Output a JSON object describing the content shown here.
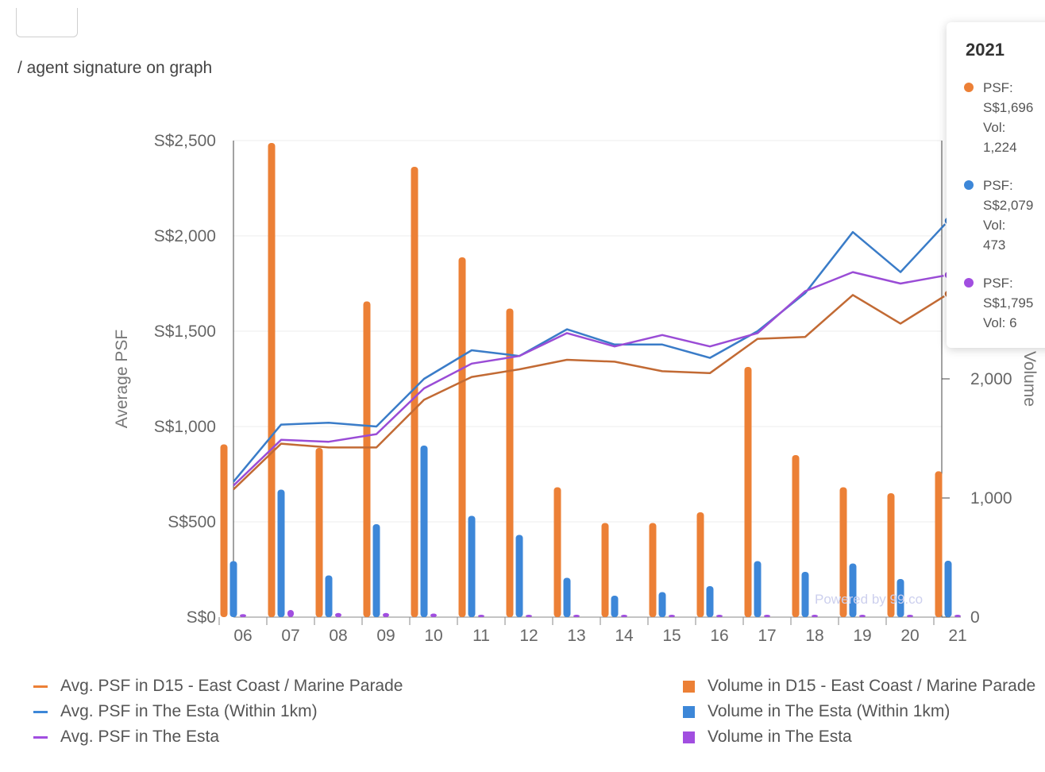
{
  "caption": "/ agent signature on graph",
  "colors": {
    "d15": "#ec8036",
    "d15_line": "#c26a34",
    "esta1km": "#3d87d8",
    "esta1km_line": "#3a7cc8",
    "esta": "#a14ee0",
    "esta_line": "#9a4cd6"
  },
  "chart_data": {
    "type": "bar",
    "title": "",
    "xlabel": "",
    "ylabel": "Average PSF",
    "y2label": "Volume",
    "categories": [
      "06",
      "07",
      "08",
      "09",
      "10",
      "11",
      "12",
      "13",
      "14",
      "15",
      "16",
      "17",
      "18",
      "19",
      "20",
      "21"
    ],
    "ylim": [
      0,
      2500
    ],
    "y_ticks": [
      "S$0",
      "S$500",
      "S$1,000",
      "S$1,500",
      "S$2,000",
      "S$2,500"
    ],
    "y2lim": [
      0,
      4000
    ],
    "y2_ticks": [
      "0",
      "1,000",
      "2,000"
    ],
    "watermark": "Powered by 99.co",
    "bar_series": [
      {
        "name": "Volume in D15 - East Coast / Marine Parade",
        "color": "#ec8036",
        "values": [
          1450,
          3980,
          1420,
          2650,
          3780,
          3020,
          2590,
          1090,
          790,
          790,
          880,
          2100,
          1360,
          1090,
          1040,
          1224
        ]
      },
      {
        "name": "Volume in The Esta (Within 1km)",
        "color": "#3d87d8",
        "values": [
          470,
          1070,
          350,
          780,
          1440,
          850,
          690,
          330,
          180,
          210,
          260,
          470,
          380,
          450,
          320,
          473
        ]
      },
      {
        "name": "Volume in The Esta",
        "color": "#a14ee0",
        "values": [
          25,
          60,
          35,
          35,
          30,
          20,
          15,
          8,
          5,
          5,
          6,
          10,
          8,
          8,
          6,
          6
        ]
      }
    ],
    "line_series": [
      {
        "name": "Avg. PSF in D15 - East Coast / Marine Parade",
        "color": "#c26a34",
        "values": [
          670,
          910,
          890,
          890,
          1140,
          1260,
          1300,
          1350,
          1340,
          1290,
          1280,
          1460,
          1470,
          1690,
          1540,
          1696
        ]
      },
      {
        "name": "Avg. PSF in The Esta (Within 1km)",
        "color": "#3a7cc8",
        "values": [
          710,
          1010,
          1020,
          1000,
          1250,
          1400,
          1370,
          1510,
          1430,
          1430,
          1360,
          1500,
          1700,
          2020,
          1810,
          2079
        ]
      },
      {
        "name": "Avg. PSF in The Esta",
        "color": "#9a4cd6",
        "values": [
          690,
          930,
          920,
          960,
          1200,
          1330,
          1370,
          1490,
          1420,
          1480,
          1420,
          1490,
          1710,
          1810,
          1750,
          1795
        ]
      }
    ]
  },
  "tooltip": {
    "year": "2021",
    "items": [
      {
        "color": "#ec8036",
        "lines": [
          "PSF:",
          "S$1,696",
          "Vol:",
          "1,224"
        ]
      },
      {
        "color": "#3d87d8",
        "lines": [
          "PSF:",
          "S$2,079",
          "Vol:",
          "473"
        ]
      },
      {
        "color": "#a14ee0",
        "lines": [
          "PSF:",
          "S$1,795",
          "Vol: 6"
        ]
      }
    ]
  },
  "legend": {
    "left": [
      {
        "label": "Avg. PSF in D15 - East Coast / Marine Parade",
        "color": "#ec8036"
      },
      {
        "label": "Avg. PSF in The Esta (Within 1km)",
        "color": "#3d87d8"
      },
      {
        "label": "Avg. PSF in The Esta",
        "color": "#a14ee0"
      }
    ],
    "right": [
      {
        "label": "Volume in D15 - East Coast / Marine Parade",
        "color": "#ec8036"
      },
      {
        "label": "Volume in The Esta (Within 1km)",
        "color": "#3d87d8"
      },
      {
        "label": "Volume in The Esta",
        "color": "#a14ee0"
      }
    ]
  }
}
